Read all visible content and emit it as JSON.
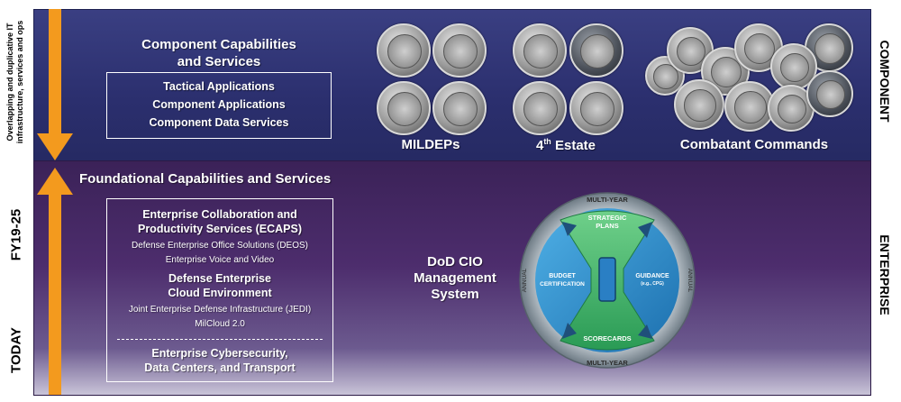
{
  "arrow": {
    "top_label_line1": "Overlapping and duplicative IT",
    "top_label_line2": "infrastructure, services and ops",
    "fy_label": "FY19-25",
    "today_label": "TODAY"
  },
  "component": {
    "side_label": "COMPONENT",
    "title_line1": "Component Capabilities",
    "title_line2": "and Services",
    "items": [
      "Tactical Applications",
      "Component Applications",
      "Component Data Services"
    ],
    "groups": [
      {
        "label": "MILDEPs"
      },
      {
        "label_main": "4",
        "label_sup": "th",
        "label_rest": " Estate"
      },
      {
        "label": "Combatant Commands"
      }
    ]
  },
  "enterprise": {
    "side_label": "ENTERPRISE",
    "title": "Foundational Capabilities and Services",
    "ecaps_title_line1": "Enterprise Collaboration and",
    "ecaps_title_line2": "Productivity Services (ECAPS)",
    "ecaps_items": [
      "Defense Enterprise Office Solutions (DEOS)",
      "Enterprise Voice and Video"
    ],
    "cloud_title_line1": "Defense Enterprise",
    "cloud_title_line2": "Cloud Environment",
    "cloud_items": [
      "Joint Enterprise Defense Infrastructure (JEDI)",
      "MilCloud 2.0"
    ],
    "cyber_title_line1": "Enterprise Cybersecurity,",
    "cyber_title_line2": "Data Centers, and Transport"
  },
  "cio": {
    "title_line1": "DoD CIO",
    "title_line2": "Management",
    "title_line3": "System",
    "wheel": {
      "top": "STRATEGIC",
      "top2": "PLANS",
      "left": "BUDGET",
      "left2": "CERTIFICATION",
      "right": "GUIDANCE",
      "right2": "(e.g., CPG)",
      "bottom": "SCORECARDS",
      "ring_top": "MULTI-YEAR",
      "ring_bottom": "MULTI-YEAR",
      "ring_left": "ANNUAL",
      "ring_right": "ANNUAL"
    }
  },
  "colors": {
    "arrow": "#f39a1e",
    "wheel_blue": "#2e8fd0",
    "wheel_green": "#43b56a"
  }
}
